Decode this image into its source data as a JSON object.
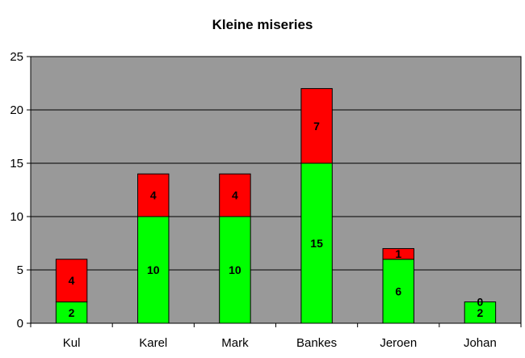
{
  "chart_data": {
    "type": "bar",
    "stacked": true,
    "title": "Kleine miseries",
    "xlabel": "",
    "ylabel": "",
    "categories": [
      "Kul",
      "Karel",
      "Mark",
      "Bankes",
      "Jeroen",
      "Johan"
    ],
    "series": [
      {
        "values": [
          2,
          10,
          10,
          15,
          6,
          2
        ],
        "color": "#00ff00"
      },
      {
        "values": [
          4,
          4,
          4,
          7,
          1,
          0
        ],
        "color": "#ff0000"
      }
    ],
    "ylim": [
      0,
      25
    ],
    "yticks": [
      "0",
      "5",
      "10",
      "15",
      "20",
      "25"
    ],
    "grid": true,
    "legend": "none",
    "plot_background": "#999999",
    "edge_color": "#000000"
  }
}
